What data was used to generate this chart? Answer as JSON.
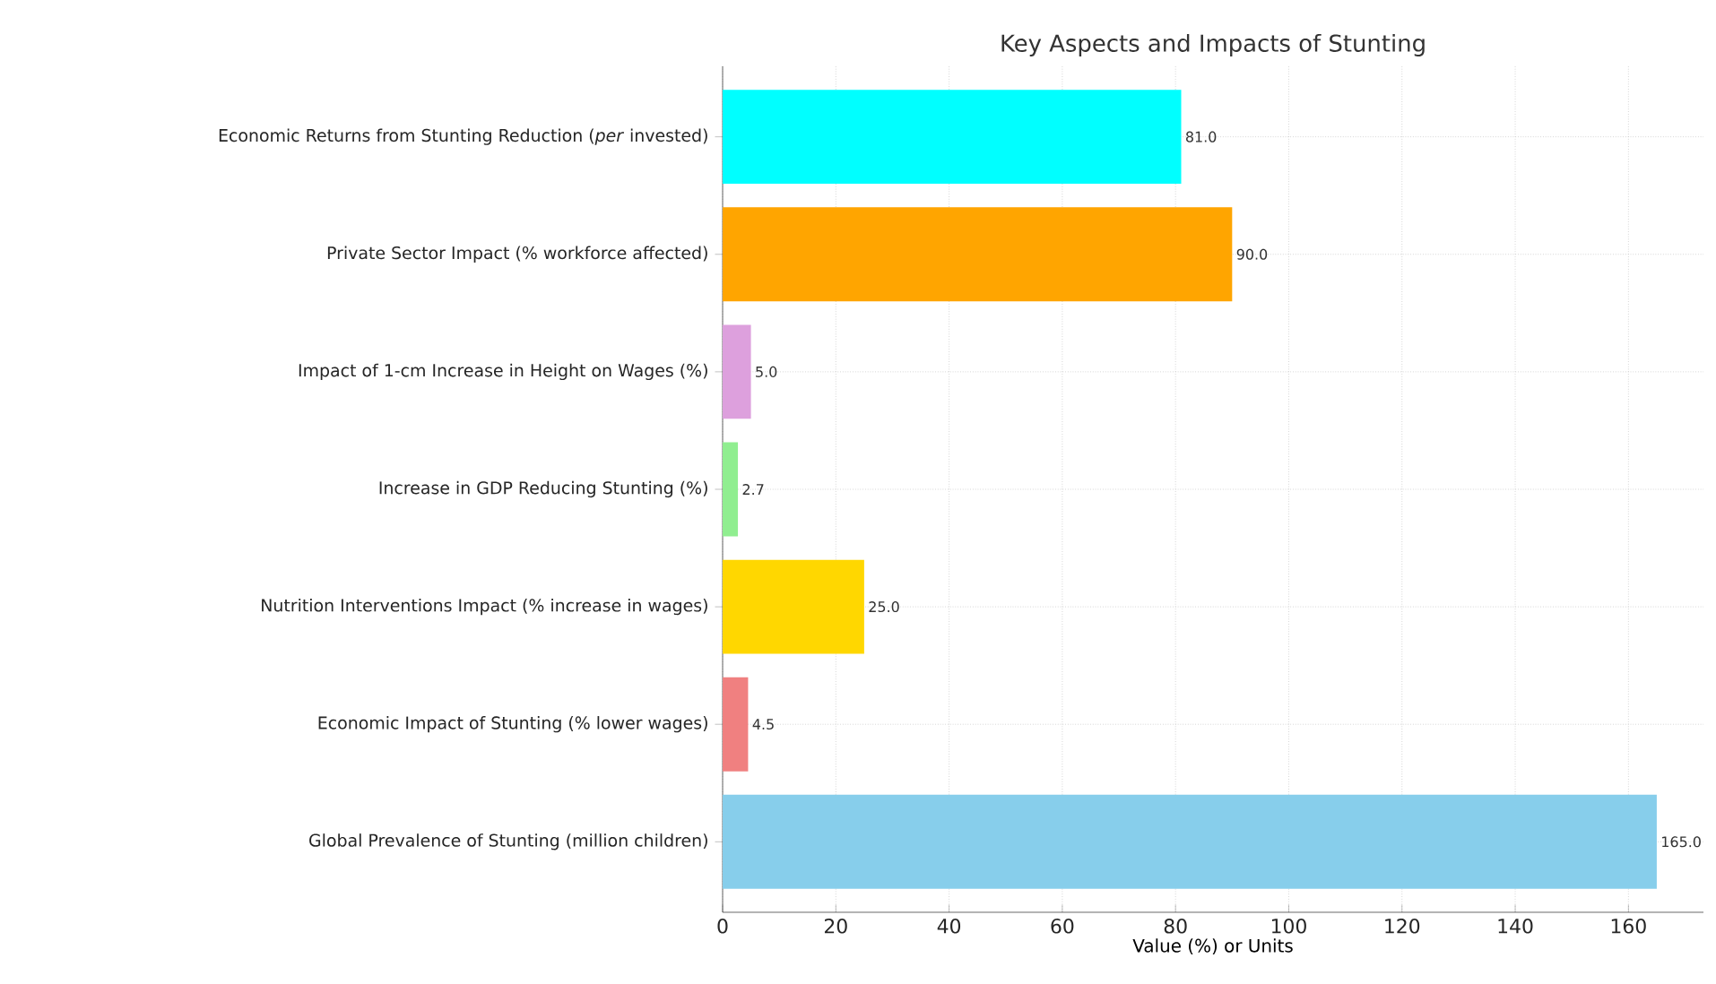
{
  "chart_data": {
    "type": "bar",
    "orientation": "horizontal",
    "title": "Key Aspects and Impacts of Stunting",
    "xlabel": "Value (%) or Units",
    "categories": [
      "Economic Returns from Stunting Reduction (*per* invested)",
      "Private Sector Impact (% workforce affected)",
      "Impact of 1-cm Increase in Height on Wages (%)",
      "Increase in GDP Reducing Stunting (%)",
      "Nutrition Interventions Impact (% increase in wages)",
      "Economic Impact of Stunting (% lower wages)",
      "Global Prevalence of Stunting (million children)"
    ],
    "values": [
      81.0,
      90.0,
      5.0,
      2.7,
      25.0,
      4.5,
      165.0
    ],
    "value_labels": [
      "81.0",
      "90.0",
      "5.0",
      "2.7",
      "25.0",
      "4.5",
      "165.0"
    ],
    "colors": [
      "#00ffff",
      "#ffa500",
      "#dda0dd",
      "#90ee90",
      "#ffd700",
      "#f08080",
      "#87ceeb"
    ],
    "xlim": [
      0,
      173.25
    ],
    "xticks": [
      0,
      20,
      40,
      60,
      80,
      100,
      120,
      140,
      160
    ],
    "grid": true
  }
}
